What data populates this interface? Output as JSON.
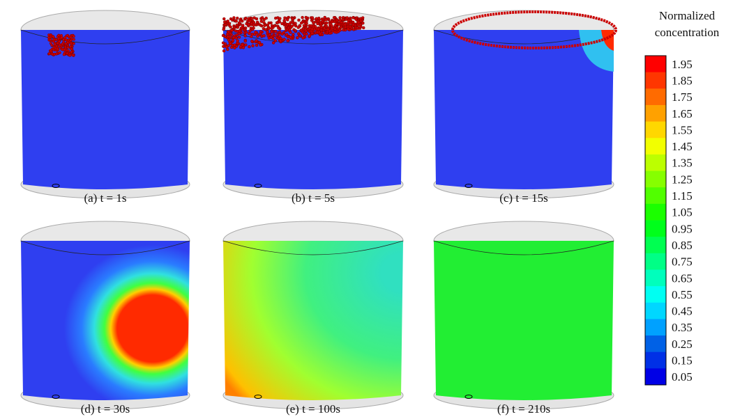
{
  "figure": {
    "colorbar": {
      "title": [
        "Normalized",
        "concentration"
      ],
      "labels": [
        "1.95",
        "1.85",
        "1.75",
        "1.65",
        "1.55",
        "1.45",
        "1.35",
        "1.25",
        "1.15",
        "1.05",
        "0.95",
        "0.85",
        "0.75",
        "0.65",
        "0.55",
        "0.45",
        "0.35",
        "0.25",
        "0.15",
        "0.05"
      ]
    },
    "panels": [
      {
        "caption": "(a) t = 1s"
      },
      {
        "caption": "(b) t = 5s"
      },
      {
        "caption": "(c) t = 15s"
      },
      {
        "caption": "(d) t = 30s"
      },
      {
        "caption": "(e) t = 100s"
      },
      {
        "caption": "(f) t = 210s"
      }
    ]
  }
}
